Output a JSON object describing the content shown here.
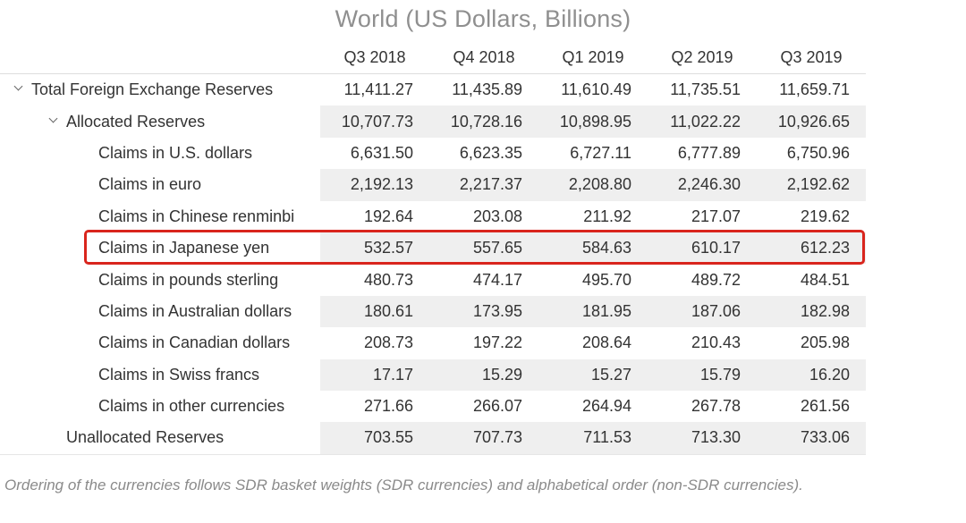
{
  "title": "World (US Dollars, Billions)",
  "columns": [
    "Q3 2018",
    "Q4 2018",
    "Q1 2019",
    "Q2 2019",
    "Q3 2019"
  ],
  "rows": [
    {
      "label": "Total Foreign Exchange Reserves",
      "values": [
        "11,411.27",
        "11,435.89",
        "11,610.49",
        "11,735.51",
        "11,659.71"
      ]
    },
    {
      "label": "Allocated Reserves",
      "values": [
        "10,707.73",
        "10,728.16",
        "10,898.95",
        "11,022.22",
        "10,926.65"
      ]
    },
    {
      "label": "Claims in U.S. dollars",
      "values": [
        "6,631.50",
        "6,623.35",
        "6,727.11",
        "6,777.89",
        "6,750.96"
      ]
    },
    {
      "label": "Claims in euro",
      "values": [
        "2,192.13",
        "2,217.37",
        "2,208.80",
        "2,246.30",
        "2,192.62"
      ]
    },
    {
      "label": "Claims in Chinese renminbi",
      "values": [
        "192.64",
        "203.08",
        "211.92",
        "217.07",
        "219.62"
      ]
    },
    {
      "label": "Claims in Japanese yen",
      "values": [
        "532.57",
        "557.65",
        "584.63",
        "610.17",
        "612.23"
      ]
    },
    {
      "label": "Claims in pounds sterling",
      "values": [
        "480.73",
        "474.17",
        "495.70",
        "489.72",
        "484.51"
      ]
    },
    {
      "label": "Claims in Australian dollars",
      "values": [
        "180.61",
        "173.95",
        "181.95",
        "187.06",
        "182.98"
      ]
    },
    {
      "label": "Claims in Canadian dollars",
      "values": [
        "208.73",
        "197.22",
        "208.64",
        "210.43",
        "205.98"
      ]
    },
    {
      "label": "Claims in Swiss francs",
      "values": [
        "17.17",
        "15.29",
        "15.27",
        "15.79",
        "16.20"
      ]
    },
    {
      "label": "Claims in other currencies",
      "values": [
        "271.66",
        "266.07",
        "264.94",
        "267.78",
        "261.56"
      ]
    },
    {
      "label": "Unallocated Reserves",
      "values": [
        "703.55",
        "707.73",
        "711.53",
        "713.30",
        "733.06"
      ]
    }
  ],
  "highlight_color": "#d9251d",
  "footnote": "Ordering of the currencies follows SDR basket weights (SDR currencies) and alphabetical order (non-SDR currencies)."
}
